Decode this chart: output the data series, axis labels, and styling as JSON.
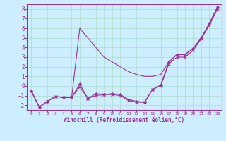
{
  "x": [
    0,
    1,
    2,
    3,
    4,
    5,
    6,
    7,
    8,
    9,
    10,
    11,
    12,
    13,
    14,
    15,
    16,
    17,
    18,
    19,
    20,
    21,
    22,
    23
  ],
  "line1": [
    -0.5,
    -2.2,
    -1.6,
    -1.1,
    -1.2,
    -1.2,
    0.2,
    -1.3,
    -0.8,
    -0.9,
    -0.8,
    -0.9,
    -1.4,
    -1.6,
    -1.7,
    -0.35,
    0.1,
    2.5,
    3.25,
    3.25,
    3.9,
    5.0,
    6.5,
    8.2
  ],
  "line2": [
    -0.5,
    -2.2,
    -1.6,
    -1.1,
    -1.2,
    -1.2,
    -0.1,
    -1.3,
    -1.0,
    -0.9,
    -0.9,
    -1.0,
    -1.5,
    -1.7,
    -1.7,
    -0.35,
    -0.0,
    2.3,
    3.0,
    3.0,
    3.7,
    4.9,
    6.3,
    8.0
  ],
  "line3": [
    -0.5,
    -2.2,
    -1.6,
    -1.1,
    -1.2,
    -1.2,
    6.0,
    5.0,
    4.0,
    3.0,
    2.5,
    2.0,
    1.5,
    1.2,
    1.0,
    1.0,
    1.2,
    2.5,
    3.3,
    3.3,
    3.9,
    5.0,
    6.5,
    8.2
  ],
  "color": "#993399",
  "bg_color": "#cceeff",
  "grid_color": "#aaddcc",
  "xlabel": "Windchill (Refroidissement éolien,°C)",
  "ylim": [
    -2.5,
    8.5
  ],
  "xlim": [
    -0.5,
    23.5
  ],
  "yticks": [
    -2,
    -1,
    0,
    1,
    2,
    3,
    4,
    5,
    6,
    7,
    8
  ],
  "xticks": [
    0,
    1,
    2,
    3,
    4,
    5,
    6,
    7,
    8,
    9,
    10,
    11,
    12,
    13,
    14,
    15,
    16,
    17,
    18,
    19,
    20,
    21,
    22,
    23
  ]
}
